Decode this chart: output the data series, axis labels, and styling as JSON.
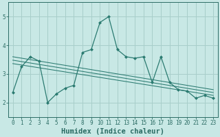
{
  "title": "",
  "xlabel": "Humidex (Indice chaleur)",
  "ylabel": "",
  "bg_color": "#c8e8e5",
  "grid_color": "#a8ceca",
  "line_color": "#2a7a70",
  "xlim": [
    -0.5,
    23.5
  ],
  "ylim": [
    1.5,
    5.5
  ],
  "xticks": [
    0,
    1,
    2,
    3,
    4,
    5,
    6,
    7,
    8,
    9,
    10,
    11,
    12,
    13,
    14,
    15,
    16,
    17,
    18,
    19,
    20,
    21,
    22,
    23
  ],
  "yticks": [
    2,
    3,
    4,
    5
  ],
  "main_x": [
    0,
    1,
    2,
    3,
    4,
    5,
    6,
    7,
    8,
    9,
    10,
    11,
    12,
    13,
    14,
    15,
    16,
    17,
    18,
    19,
    20,
    21,
    22,
    23
  ],
  "main_y": [
    2.35,
    3.25,
    3.6,
    3.45,
    2.0,
    2.3,
    2.5,
    2.6,
    3.75,
    3.85,
    4.8,
    5.0,
    3.85,
    3.6,
    3.55,
    3.6,
    2.7,
    3.6,
    2.7,
    2.45,
    2.4,
    2.15,
    2.25,
    2.15
  ],
  "reg_lines": [
    {
      "x": [
        0,
        23
      ],
      "y": [
        3.6,
        2.45
      ]
    },
    {
      "x": [
        0,
        23
      ],
      "y": [
        3.48,
        2.35
      ]
    },
    {
      "x": [
        0,
        23
      ],
      "y": [
        3.36,
        2.25
      ]
    }
  ],
  "font_color": "#2a6b63",
  "tick_font_size": 5.5,
  "label_font_size": 7.5
}
